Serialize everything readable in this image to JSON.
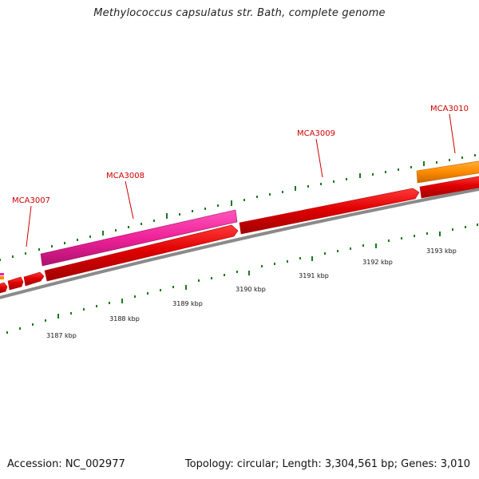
{
  "title": "Methylococcus capsulatus str. Bath, complete genome",
  "footer": {
    "accession": "Accession: NC_002977",
    "topology": "Topology: circular; Length: 3,304,561 bp; Genes: 3,010"
  },
  "colors": {
    "backbone": "#8a8a8a",
    "cds": "#e00000",
    "pink_feature": "#ee2299",
    "orange_feature": "#ff8c00",
    "ticks": "#1a7a1a",
    "gene_label": "#cc0000",
    "kbp_label": "#111111"
  },
  "gene_labels": [
    "MCA3007",
    "MCA3008",
    "MCA3009",
    "MCA3010"
  ],
  "kbp_labels": [
    "3187 kbp",
    "3188 kbp",
    "3189 kbp",
    "3190 kbp",
    "3191 kbp",
    "3192 kbp",
    "3193 kbp"
  ]
}
